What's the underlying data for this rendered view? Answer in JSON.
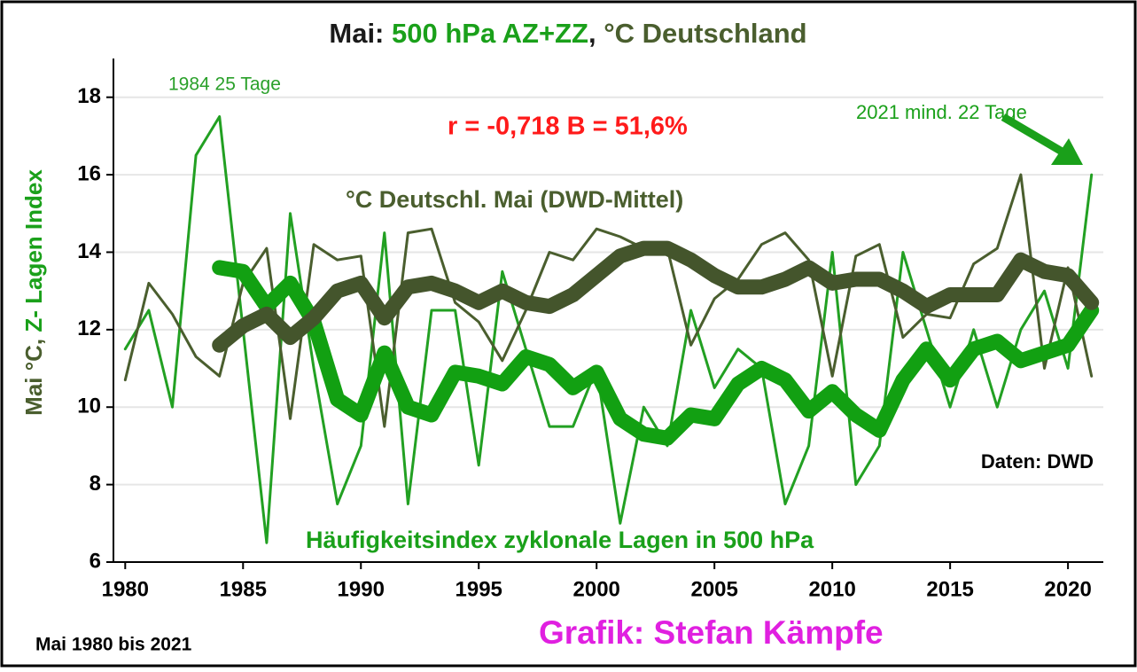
{
  "chart_data": {
    "type": "line",
    "title_parts": [
      {
        "text": "Mai: ",
        "color": "#1a1a1a"
      },
      {
        "text": "500 hPa AZ+ZZ",
        "color": "#1aa01a"
      },
      {
        "text": ", ",
        "color": "#1a1a1a"
      },
      {
        "text": "°C Deutschland",
        "color": "#4a5e2e"
      }
    ],
    "ylabel_parts": [
      {
        "text": "Mai °C, ",
        "color": "#4a5e2e"
      },
      {
        "text": "Z- Lagen Index",
        "color": "#1aa01a"
      }
    ],
    "annotations": [
      {
        "text": "1984 25 Tage",
        "color": "#2aa02a"
      },
      {
        "text": "2021 mind. 22 Tage",
        "color": "#1aa01a"
      },
      {
        "text": "r = -0,718 B = 51,6%",
        "color": "#ff1a1a"
      },
      {
        "text": "°C Deutschl. Mai (DWD-Mittel)",
        "color": "#4a5e2e"
      },
      {
        "text": "Daten: DWD",
        "color": "#000000"
      },
      {
        "text": "Häufigkeitsindex zyklonale Lagen in 500 hPa",
        "color": "#1aa01a"
      },
      {
        "text": "Mai 1980 bis 2021",
        "color": "#000000"
      },
      {
        "text": "Grafik: Stefan Kämpfe",
        "color": "#e020e0"
      }
    ],
    "x": [
      1980,
      1981,
      1982,
      1983,
      1984,
      1985,
      1986,
      1987,
      1988,
      1989,
      1990,
      1991,
      1992,
      1993,
      1994,
      1995,
      1996,
      1997,
      1998,
      1999,
      2000,
      2001,
      2002,
      2003,
      2004,
      2005,
      2006,
      2007,
      2008,
      2009,
      2010,
      2011,
      2012,
      2013,
      2014,
      2015,
      2016,
      2017,
      2018,
      2019,
      2020,
      2021
    ],
    "series": [
      {
        "name": "Häufigkeitsindex zyklonale Lagen in 500 hPa",
        "color": "#22a022",
        "width": 3,
        "values": [
          11.5,
          12.5,
          10,
          16.5,
          17.5,
          12,
          6.5,
          15,
          11,
          7.5,
          9,
          14.5,
          7.5,
          12.5,
          12.5,
          8.5,
          13.5,
          11.5,
          9.5,
          9.5,
          11,
          7,
          10,
          9,
          12.5,
          10.5,
          11.5,
          11,
          7.5,
          9,
          14,
          8,
          9,
          14,
          12,
          10,
          12,
          10,
          12,
          13,
          11,
          16
        ]
      },
      {
        "name": "°C Deutschl. Mai (DWD-Mittel)",
        "color": "#4a5e2e",
        "width": 3,
        "values": [
          10.7,
          13.2,
          12.4,
          11.3,
          10.8,
          13.2,
          14.1,
          9.7,
          14.2,
          13.8,
          13.9,
          9.5,
          14.5,
          14.6,
          12.7,
          12.2,
          11.2,
          12.5,
          14,
          13.8,
          14.6,
          14.4,
          14.1,
          14.1,
          11.6,
          12.8,
          13.3,
          14.2,
          14.5,
          13.8,
          10.8,
          13.9,
          14.2,
          11.8,
          12.4,
          12.3,
          13.7,
          14.1,
          16,
          11,
          13.6,
          10.8
        ]
      },
      {
        "color": "#12a012",
        "width": 17,
        "values": [
          null,
          null,
          null,
          null,
          13.6,
          13.5,
          12.6,
          13.2,
          12.2,
          10.2,
          9.8,
          11.4,
          10,
          9.8,
          10.9,
          10.8,
          10.6,
          11.3,
          11.1,
          10.5,
          10.9,
          9.7,
          9.3,
          9.2,
          9.8,
          9.7,
          10.6,
          11,
          10.7,
          9.9,
          10.4,
          9.8,
          9.4,
          10.7,
          11.5,
          10.7,
          11.5,
          11.7,
          11.2,
          11.4,
          11.6,
          12.5
        ]
      },
      {
        "color": "#44552c",
        "width": 17,
        "values": [
          null,
          null,
          null,
          null,
          11.6,
          12.1,
          12.4,
          11.8,
          12.3,
          13.0,
          13.2,
          12.3,
          13.1,
          13.2,
          13.0,
          12.7,
          13.0,
          12.7,
          12.6,
          12.9,
          13.4,
          13.9,
          14.1,
          14.1,
          13.8,
          13.4,
          13.1,
          13.1,
          13.3,
          13.6,
          13.2,
          13.3,
          13.3,
          13.0,
          12.6,
          12.9,
          12.9,
          12.9,
          13.8,
          13.5,
          13.4,
          12.7
        ]
      }
    ],
    "xlim": [
      1979.5,
      2021.5
    ],
    "xticks": [
      1980,
      1985,
      1990,
      1995,
      2000,
      2005,
      2010,
      2015,
      2020
    ],
    "ylim": [
      6,
      19
    ],
    "yticks": [
      6,
      8,
      10,
      12,
      14,
      16,
      18
    ],
    "grid": true
  }
}
